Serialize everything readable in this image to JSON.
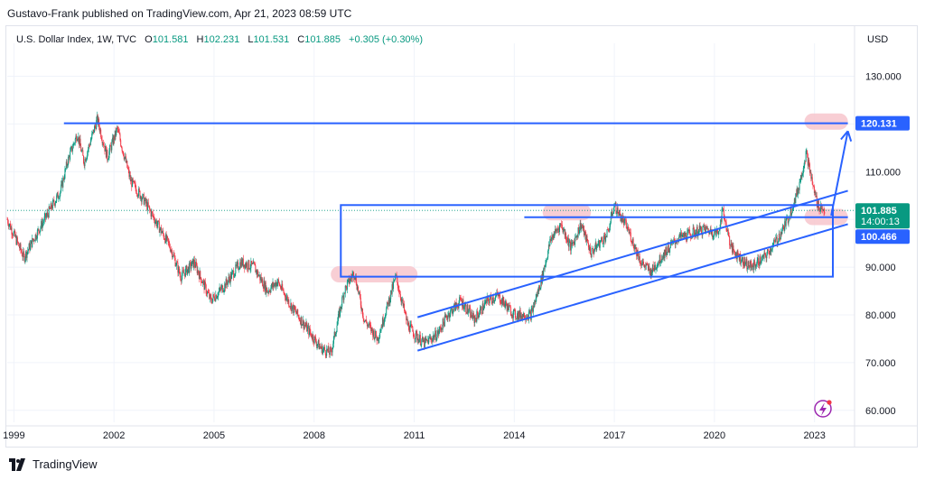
{
  "publish_line": "Gustavo-Frank published on TradingView.com, Apr 21, 2023 08:59 UTC",
  "legend": {
    "symbol": "U.S. Dollar Index, 1W, TVC",
    "open_label": "O",
    "open": "101.581",
    "high_label": "H",
    "high": "102.231",
    "low_label": "L",
    "low": "101.531",
    "close_label": "C",
    "close": "101.885",
    "change": "+0.305 (+0.30%)"
  },
  "currency": "USD",
  "brand": "TradingView",
  "colors": {
    "up": "#089981",
    "down": "#f23645",
    "drawing": "#2962ff",
    "highlight": "#f7c5cc"
  },
  "chart_data": {
    "type": "candlestick",
    "y_ticks": [
      "130.000",
      "120.000",
      "110.000",
      "100.000",
      "90.000",
      "80.000",
      "70.000",
      "60.000"
    ],
    "y_tick_values": [
      130,
      120,
      110,
      100,
      90,
      80,
      70,
      60
    ],
    "x_ticks": [
      "1999",
      "2002",
      "2005",
      "2008",
      "2011",
      "2014",
      "2017",
      "2020",
      "2023"
    ],
    "x_tick_values": [
      1999,
      2002,
      2005,
      2008,
      2011,
      2014,
      2017,
      2020,
      2023
    ],
    "xlim": [
      1998.8,
      2024.2
    ],
    "ylim": [
      57.5,
      135
    ],
    "price_path": [
      [
        1998.8,
        100
      ],
      [
        1999.3,
        92
      ],
      [
        1999.6,
        96
      ],
      [
        2000.0,
        101
      ],
      [
        2000.4,
        106
      ],
      [
        2000.6,
        112
      ],
      [
        2000.9,
        118
      ],
      [
        2001.1,
        112
      ],
      [
        2001.5,
        121
      ],
      [
        2001.8,
        113
      ],
      [
        2002.1,
        119
      ],
      [
        2002.5,
        108
      ],
      [
        2002.9,
        104
      ],
      [
        2003.3,
        99
      ],
      [
        2003.7,
        94
      ],
      [
        2004.0,
        88
      ],
      [
        2004.4,
        91
      ],
      [
        2004.9,
        83
      ],
      [
        2005.3,
        86
      ],
      [
        2005.8,
        91
      ],
      [
        2006.2,
        90
      ],
      [
        2006.6,
        85
      ],
      [
        2006.9,
        87
      ],
      [
        2007.3,
        82
      ],
      [
        2007.8,
        77
      ],
      [
        2008.2,
        73
      ],
      [
        2008.5,
        72
      ],
      [
        2008.9,
        85
      ],
      [
        2009.2,
        89
      ],
      [
        2009.5,
        79
      ],
      [
        2009.9,
        75
      ],
      [
        2010.2,
        82
      ],
      [
        2010.45,
        88
      ],
      [
        2010.8,
        78
      ],
      [
        2011.0,
        76
      ],
      [
        2011.3,
        74
      ],
      [
        2011.7,
        76
      ],
      [
        2012.0,
        80
      ],
      [
        2012.4,
        83
      ],
      [
        2012.8,
        79
      ],
      [
        2013.2,
        83
      ],
      [
        2013.5,
        84
      ],
      [
        2014.0,
        80
      ],
      [
        2014.5,
        80
      ],
      [
        2014.8,
        87
      ],
      [
        2015.1,
        96
      ],
      [
        2015.4,
        99
      ],
      [
        2015.7,
        94
      ],
      [
        2016.0,
        99
      ],
      [
        2016.3,
        93
      ],
      [
        2016.8,
        97
      ],
      [
        2016.99,
        103
      ],
      [
        2017.4,
        98
      ],
      [
        2017.8,
        91
      ],
      [
        2018.1,
        89
      ],
      [
        2018.5,
        93
      ],
      [
        2018.9,
        96
      ],
      [
        2019.3,
        97
      ],
      [
        2019.7,
        98
      ],
      [
        2020.1,
        97
      ],
      [
        2020.25,
        102
      ],
      [
        2020.5,
        94
      ],
      [
        2020.9,
        91
      ],
      [
        2021.1,
        90
      ],
      [
        2021.5,
        92
      ],
      [
        2021.9,
        96
      ],
      [
        2022.2,
        100
      ],
      [
        2022.5,
        106
      ],
      [
        2022.75,
        114
      ],
      [
        2022.95,
        107
      ],
      [
        2023.1,
        103
      ],
      [
        2023.3,
        101.885
      ]
    ],
    "drawings": {
      "resistance_line": {
        "value": 120.131,
        "from": 2000.5,
        "to": 2024.0
      },
      "range_box": {
        "from": 2008.8,
        "to": 2023.55,
        "top": 103,
        "bottom": 88
      },
      "inner_level": {
        "value": 100.466,
        "from": 2014.3,
        "to": 2024.0
      },
      "upper_channel": [
        [
          2011.1,
          79.5
        ],
        [
          2024.0,
          106
        ]
      ],
      "lower_channel": [
        [
          2011.1,
          72.5
        ],
        [
          2024.0,
          99
        ]
      ],
      "projection_arrow": [
        [
          2023.5,
          100.8
        ],
        [
          2024.0,
          118.5
        ]
      ],
      "highlight_zones": [
        {
          "from": 2008.5,
          "to": 2011.1,
          "center": 88.5
        },
        {
          "from": 2014.85,
          "to": 2016.3,
          "center": 101.5
        },
        {
          "from": 2022.7,
          "to": 2024.0,
          "center": 100.5
        },
        {
          "from": 2022.7,
          "to": 2024.0,
          "center": 120.5
        }
      ]
    },
    "price_labels": [
      {
        "value": 120.131,
        "text": "120.131",
        "style": "drawing"
      },
      {
        "value": 101.885,
        "text": "101.885",
        "sub": "14:00:13",
        "style": "up"
      },
      {
        "value": 100.466,
        "text": "100.466",
        "style": "drawing"
      }
    ]
  }
}
